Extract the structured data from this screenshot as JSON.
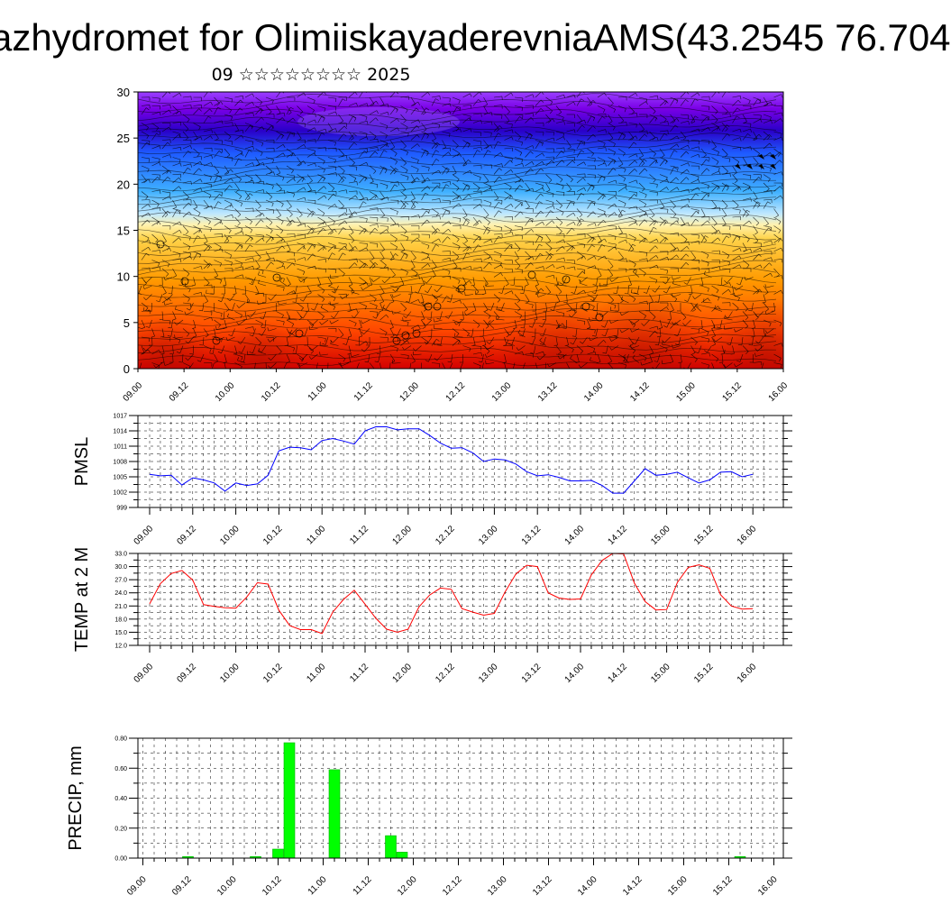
{
  "title": "azhydromet for OlimiiskayaderevniaAMS(43.2545 76.704",
  "subtitle": "09 ☆☆☆☆☆☆☆☆ 2025",
  "time_labels": [
    "09.00",
    "09.12",
    "10.00",
    "10.12",
    "11.00",
    "11.12",
    "12.00",
    "12.12",
    "13.00",
    "13.12",
    "14.00",
    "14.12",
    "15.00",
    "15.12",
    "16.00"
  ],
  "colors": {
    "pmsl": "#0000ff",
    "temp": "#ff0000",
    "precip": "#00ff00",
    "precip_edge": "#00b000"
  },
  "chart_data": [
    {
      "type": "heatmap",
      "title": "",
      "ylabel": "",
      "ylim": [
        0,
        30
      ],
      "yticks": [
        "0",
        "5",
        "10",
        "15",
        "20",
        "25",
        "30"
      ],
      "xticks": [
        "09.00",
        "09.12",
        "10.00",
        "10.12",
        "11.00",
        "11.12",
        "12.00",
        "12.12",
        "13.00",
        "13.12",
        "14.00",
        "14.12",
        "15.00",
        "15.12",
        "16.00"
      ],
      "colormap": [
        "#d40000",
        "#ff4800",
        "#ff9a00",
        "#ffd34a",
        "#fff2b0",
        "#bfe8ff",
        "#3fb0ff",
        "#1e5aff",
        "#2a00c8",
        "#7a00e6",
        "#9a40ff"
      ]
    },
    {
      "type": "line",
      "ylabel": "PMSL",
      "ylim": [
        999,
        1017
      ],
      "yticks": [
        "999",
        "1002",
        "1005",
        "1008",
        "1011",
        "1014",
        "1017"
      ],
      "series": [
        {
          "values": [
            1005.5,
            1005.2,
            1005.3,
            1003.4,
            1004.8,
            1004.4,
            1003.8,
            1002.2,
            1003.8,
            1003.3,
            1003.6,
            1005.3,
            1010.1,
            1010.8,
            1010.7,
            1010.3,
            1012.1,
            1012.5,
            1012.0,
            1011.4,
            1014.0,
            1014.8,
            1014.8,
            1014.2,
            1014.4,
            1014.4,
            1013.1,
            1011.6,
            1010.6,
            1010.7,
            1009.7,
            1008.0,
            1008.5,
            1008.3,
            1007.5,
            1006.0,
            1005.2,
            1005.4,
            1004.9,
            1004.2,
            1004.2,
            1004.3,
            1003.3,
            1001.8,
            1001.8,
            1004.2,
            1006.6,
            1005.3,
            1005.5,
            1005.9,
            1004.8,
            1003.8,
            1004.4,
            1005.9,
            1006.0,
            1005.0,
            1005.5
          ]
        }
      ]
    },
    {
      "type": "line",
      "ylabel": "TEMP at 2 M",
      "ylim": [
        12,
        33
      ],
      "yticks": [
        "12.0",
        "15.0",
        "18.0",
        "21.0",
        "24.0",
        "27.0",
        "30.0",
        "33.0"
      ],
      "series": [
        {
          "values": [
            21.5,
            26.1,
            28.4,
            29.1,
            26.9,
            21.3,
            20.9,
            20.6,
            20.5,
            23.0,
            26.3,
            26.0,
            20.0,
            16.5,
            15.6,
            15.6,
            14.7,
            19.6,
            22.5,
            24.6,
            21.4,
            18.2,
            15.7,
            15.0,
            15.7,
            20.8,
            23.5,
            25.1,
            24.8,
            20.4,
            19.6,
            18.9,
            19.3,
            24.2,
            28.3,
            30.3,
            30.0,
            24.0,
            22.8,
            22.5,
            22.6,
            28.1,
            31.4,
            33.0,
            32.9,
            26.2,
            22.0,
            20.1,
            20.2,
            26.4,
            29.8,
            30.4,
            29.6,
            23.6,
            21.0,
            20.3,
            20.4
          ]
        }
      ]
    },
    {
      "type": "bar",
      "ylabel": "PRECIP, mm",
      "ylim": [
        0,
        0.8
      ],
      "yticks": [
        "0.00",
        "0.20",
        "0.40",
        "0.60",
        "0.80"
      ],
      "values": [
        0,
        0,
        0,
        0,
        0.01,
        0,
        0,
        0,
        0,
        0,
        0.01,
        0,
        0.06,
        0.77,
        0,
        0,
        0,
        0.59,
        0,
        0,
        0,
        0,
        0.15,
        0.04,
        0,
        0,
        0,
        0,
        0,
        0,
        0,
        0,
        0,
        0,
        0,
        0,
        0,
        0,
        0,
        0,
        0,
        0,
        0,
        0,
        0,
        0,
        0,
        0,
        0,
        0,
        0,
        0,
        0,
        0.01,
        0,
        0,
        0
      ]
    }
  ]
}
